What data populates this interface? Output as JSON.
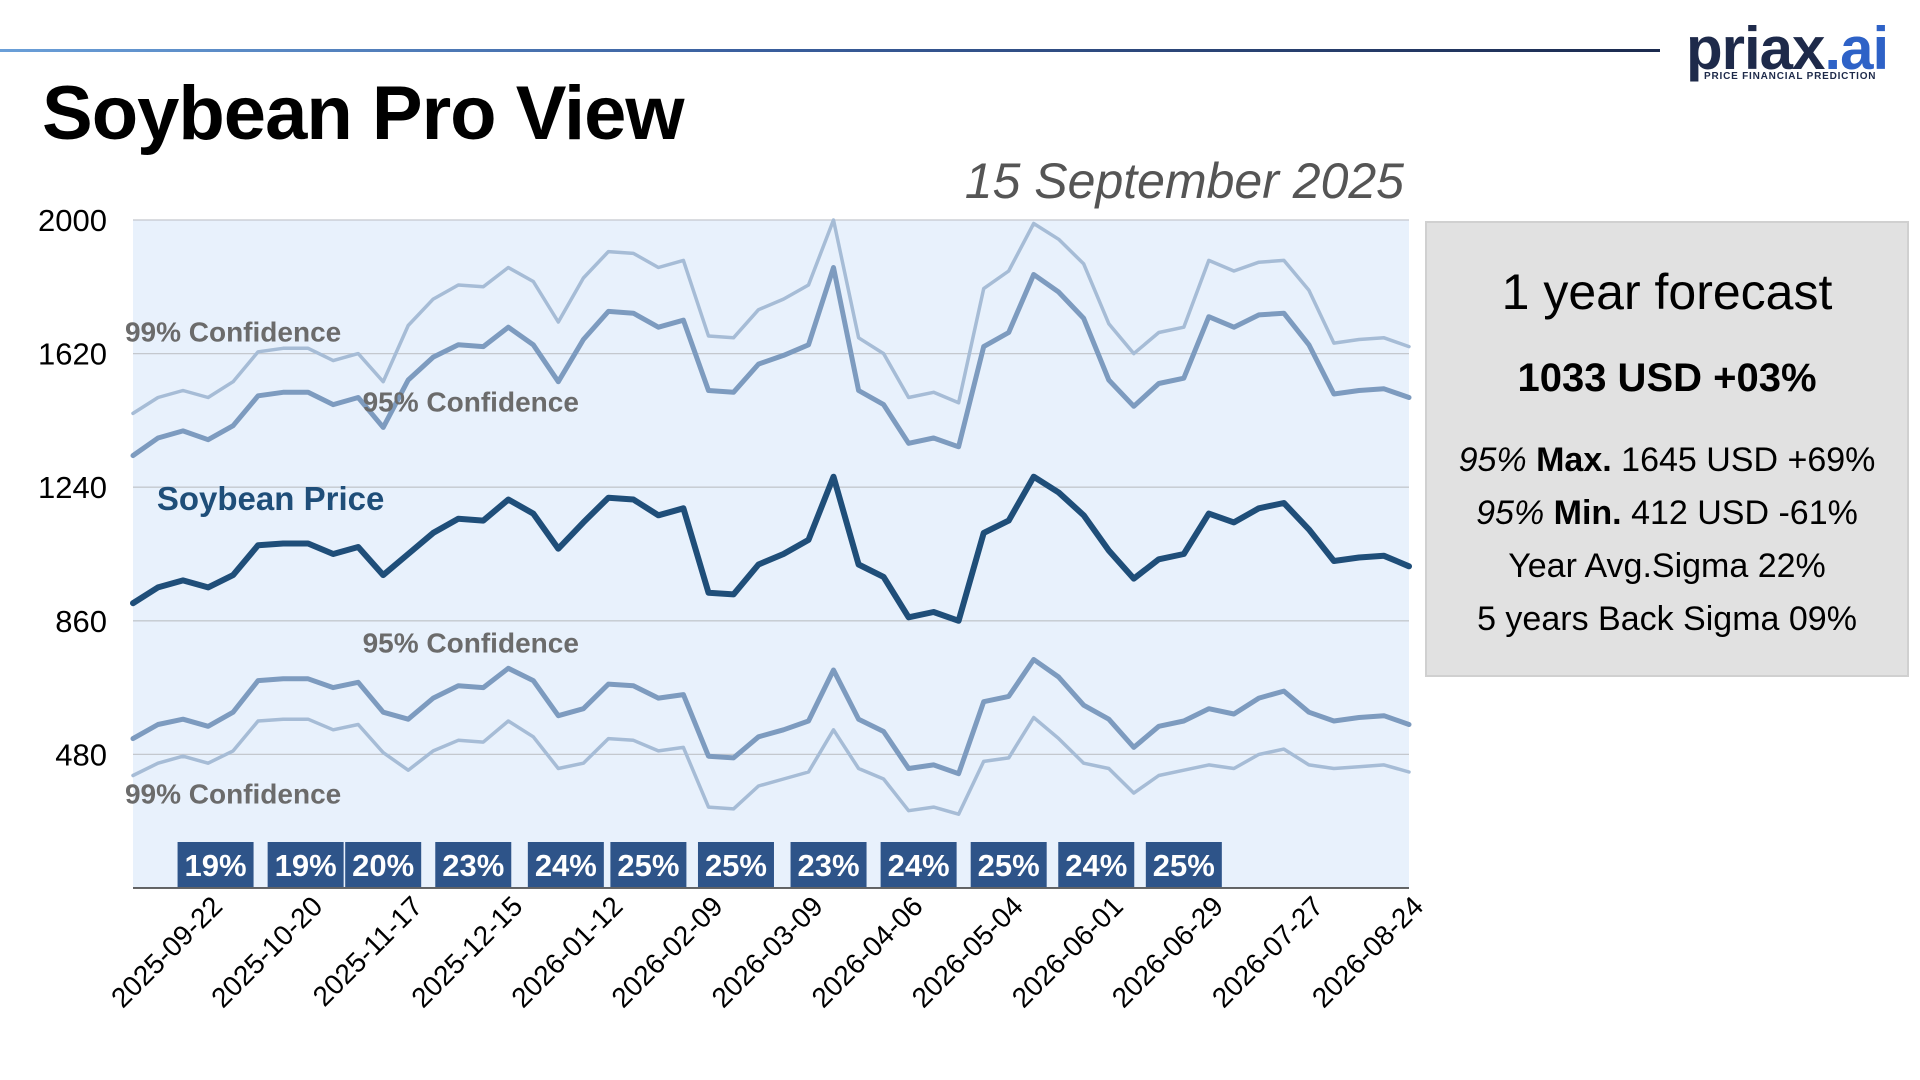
{
  "header": {
    "title": "Soybean Pro View",
    "date": "15 September 2025",
    "logo_main": "priax",
    "logo_dot": ".",
    "logo_ai": "ai",
    "logo_tagline": "PRICE FINANCIAL PREDICTION"
  },
  "colors": {
    "price": "#1f4e79",
    "conf95": "#7d9bbf",
    "conf99": "#a6bcd6",
    "plot_bg": "#e8f1fc",
    "badge": "#2e5489",
    "rule_start": "#6a9fd8",
    "rule_end": "#1b2a4e"
  },
  "forecast_panel": {
    "title": "1 year forecast",
    "main": "1033 USD +03%",
    "max_prefix": "95%",
    "max_label": "Max.",
    "max_value": "1645 USD +69%",
    "min_prefix": "95%",
    "min_label": "Min.",
    "min_value": "412 USD -61%",
    "year_avg_sigma": "Year Avg.Sigma 22%",
    "back_sigma": "5 years Back Sigma 09%"
  },
  "chart_data": {
    "type": "line",
    "xlabel": "",
    "ylabel": "",
    "ylim": [
      100,
      2000
    ],
    "y_ticks": [
      2000,
      1620,
      1240,
      860,
      480
    ],
    "x_tick_labels": [
      "2025-09-22",
      "2025-10-20",
      "2025-11-17",
      "2025-12-15",
      "2026-01-12",
      "2026-02-09",
      "2026-03-09",
      "2026-04-06",
      "2026-05-04",
      "2026-06-01",
      "2026-06-29",
      "2026-07-27",
      "2026-08-24"
    ],
    "x_tick_positions": [
      1,
      5,
      9,
      13,
      17,
      21,
      25,
      29,
      33,
      37,
      41,
      45,
      49
    ],
    "gridlines": true,
    "series": [
      {
        "name": "Soybean Price",
        "role": "price",
        "values": [
          910,
          955,
          975,
          955,
          990,
          1075,
          1080,
          1080,
          1050,
          1070,
          990,
          1050,
          1110,
          1150,
          1145,
          1205,
          1165,
          1065,
          1140,
          1210,
          1205,
          1160,
          1180,
          940,
          935,
          1020,
          1050,
          1090,
          1270,
          1020,
          985,
          870,
          885,
          860,
          1110,
          1145,
          1270,
          1225,
          1160,
          1060,
          980,
          1035,
          1050,
          1165,
          1140,
          1180,
          1195,
          1120,
          1030,
          1040,
          1045,
          1015
        ]
      },
      {
        "name": "95% Confidence",
        "role": "conf95_upper",
        "values": [
          1330,
          1380,
          1400,
          1375,
          1415,
          1500,
          1510,
          1510,
          1475,
          1495,
          1410,
          1545,
          1610,
          1645,
          1640,
          1695,
          1645,
          1540,
          1660,
          1740,
          1735,
          1695,
          1715,
          1515,
          1510,
          1590,
          1615,
          1645,
          1865,
          1515,
          1475,
          1365,
          1380,
          1355,
          1640,
          1680,
          1845,
          1795,
          1720,
          1545,
          1470,
          1535,
          1550,
          1725,
          1695,
          1730,
          1735,
          1645,
          1505,
          1515,
          1520,
          1495
        ]
      },
      {
        "name": "99% Confidence",
        "role": "conf99_upper",
        "values": [
          1450,
          1495,
          1515,
          1495,
          1540,
          1625,
          1635,
          1635,
          1600,
          1620,
          1540,
          1700,
          1775,
          1815,
          1810,
          1865,
          1825,
          1710,
          1835,
          1910,
          1905,
          1865,
          1885,
          1670,
          1665,
          1745,
          1775,
          1815,
          2000,
          1665,
          1620,
          1495,
          1510,
          1480,
          1805,
          1855,
          1990,
          1945,
          1875,
          1705,
          1620,
          1680,
          1695,
          1885,
          1855,
          1880,
          1885,
          1800,
          1650,
          1660,
          1665,
          1640
        ]
      },
      {
        "name": "95% Confidence",
        "role": "conf95_lower",
        "values": [
          525,
          565,
          580,
          560,
          600,
          690,
          695,
          695,
          670,
          685,
          600,
          580,
          640,
          675,
          670,
          725,
          690,
          590,
          610,
          680,
          675,
          640,
          650,
          475,
          470,
          530,
          550,
          575,
          720,
          580,
          545,
          440,
          450,
          425,
          630,
          645,
          750,
          700,
          620,
          580,
          500,
          560,
          575,
          610,
          595,
          640,
          660,
          600,
          575,
          585,
          590,
          565
        ]
      },
      {
        "name": "99% Confidence",
        "role": "conf99_lower",
        "values": [
          420,
          455,
          475,
          455,
          490,
          575,
          580,
          580,
          550,
          565,
          485,
          435,
          490,
          520,
          515,
          575,
          530,
          440,
          455,
          525,
          520,
          490,
          500,
          330,
          325,
          390,
          410,
          430,
          550,
          440,
          410,
          320,
          330,
          310,
          460,
          470,
          585,
          525,
          455,
          440,
          370,
          420,
          435,
          450,
          440,
          480,
          495,
          450,
          440,
          445,
          450,
          430
        ]
      }
    ],
    "annotations": [
      {
        "text": "99% Confidence",
        "role": "conf99_label",
        "x": 4,
        "y": 1655
      },
      {
        "text": "95% Confidence",
        "role": "conf95_label",
        "x": 13.5,
        "y": 1455
      },
      {
        "text": "Soybean Price",
        "role": "price_label",
        "x": 5.5,
        "y": 1175
      },
      {
        "text": "95% Confidence",
        "role": "conf95_label",
        "x": 13.5,
        "y": 770
      },
      {
        "text": "99% Confidence",
        "role": "conf99_label",
        "x": 4,
        "y": 340
      }
    ],
    "period_sigma": [
      {
        "label": "19%",
        "x": 3.3
      },
      {
        "label": "19%",
        "x": 6.9
      },
      {
        "label": "20%",
        "x": 10.0
      },
      {
        "label": "23%",
        "x": 13.6
      },
      {
        "label": "24%",
        "x": 17.3
      },
      {
        "label": "25%",
        "x": 20.6
      },
      {
        "label": "25%",
        "x": 24.1
      },
      {
        "label": "23%",
        "x": 27.8
      },
      {
        "label": "24%",
        "x": 31.4
      },
      {
        "label": "25%",
        "x": 35.0
      },
      {
        "label": "24%",
        "x": 38.5
      },
      {
        "label": "25%",
        "x": 42.0
      }
    ]
  }
}
